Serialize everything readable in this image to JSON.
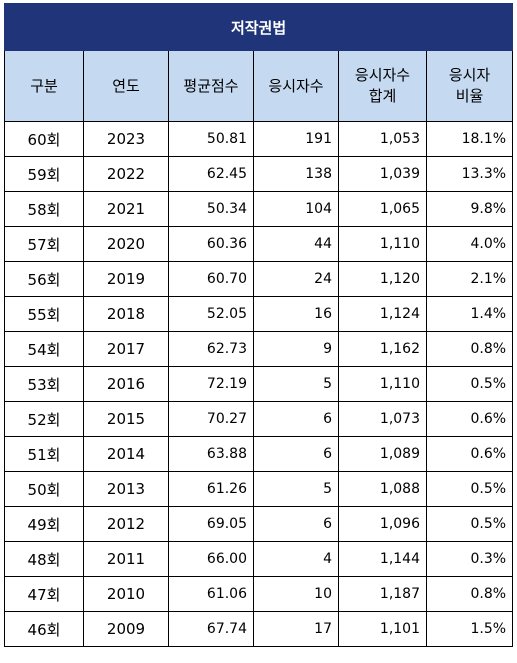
{
  "title": "저작권법",
  "headers": [
    "구분",
    "연도",
    "평균점수",
    "응시자수",
    "응시자수\n합계",
    "응시자\n비율"
  ],
  "rows": [
    [
      "60회",
      "2023",
      "50.81",
      "191",
      "1,053",
      "18.1%"
    ],
    [
      "59회",
      "2022",
      "62.45",
      "138",
      "1,039",
      "13.3%"
    ],
    [
      "58회",
      "2021",
      "50.34",
      "104",
      "1,065",
      "9.8%"
    ],
    [
      "57회",
      "2020",
      "60.36",
      "44",
      "1,110",
      "4.0%"
    ],
    [
      "56회",
      "2019",
      "60.70",
      "24",
      "1,120",
      "2.1%"
    ],
    [
      "55회",
      "2018",
      "52.05",
      "16",
      "1,124",
      "1.4%"
    ],
    [
      "54회",
      "2017",
      "62.73",
      "9",
      "1,162",
      "0.8%"
    ],
    [
      "53회",
      "2016",
      "72.19",
      "5",
      "1,110",
      "0.5%"
    ],
    [
      "52회",
      "2015",
      "70.27",
      "6",
      "1,073",
      "0.6%"
    ],
    [
      "51회",
      "2014",
      "63.88",
      "6",
      "1,089",
      "0.6%"
    ],
    [
      "50회",
      "2013",
      "61.26",
      "5",
      "1,088",
      "0.5%"
    ],
    [
      "49회",
      "2012",
      "69.05",
      "6",
      "1,096",
      "0.5%"
    ],
    [
      "48회",
      "2011",
      "66.00",
      "4",
      "1,144",
      "0.3%"
    ],
    [
      "47회",
      "2010",
      "61.06",
      "10",
      "1,187",
      "0.8%"
    ],
    [
      "46회",
      "2009",
      "67.74",
      "17",
      "1,101",
      "1.5%"
    ]
  ],
  "colors": {
    "title_bg": "#1f3479",
    "header_bg": "#c5d9f1"
  }
}
